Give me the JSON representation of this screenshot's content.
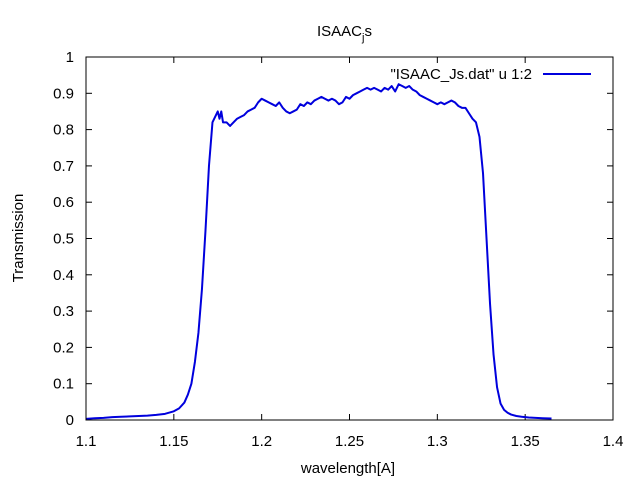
{
  "chart_data": {
    "type": "line",
    "title": "ISAAC",
    "title_subscript": "j",
    "title_suffix": "s",
    "xlabel": "wavelength[A]",
    "ylabel": "Transmission",
    "xlim": [
      1.1,
      1.4
    ],
    "ylim": [
      0,
      1
    ],
    "x_ticks": [
      "1.1",
      "1.15",
      "1.2",
      "1.25",
      "1.3",
      "1.35",
      "1.4"
    ],
    "y_ticks": [
      "0",
      "0.1",
      "0.2",
      "0.3",
      "0.4",
      "0.5",
      "0.6",
      "0.7",
      "0.8",
      "0.9",
      "1"
    ],
    "grid": false,
    "legend_position": "top-right",
    "series": [
      {
        "name": "\"ISAAC_Js.dat\" u 1:2",
        "color": "#0000dd",
        "x": [
          1.1,
          1.105,
          1.11,
          1.115,
          1.12,
          1.125,
          1.13,
          1.135,
          1.14,
          1.145,
          1.15,
          1.153,
          1.156,
          1.158,
          1.16,
          1.162,
          1.164,
          1.166,
          1.168,
          1.17,
          1.172,
          1.174,
          1.175,
          1.176,
          1.177,
          1.178,
          1.18,
          1.182,
          1.184,
          1.186,
          1.188,
          1.19,
          1.192,
          1.194,
          1.196,
          1.198,
          1.2,
          1.202,
          1.204,
          1.206,
          1.208,
          1.21,
          1.212,
          1.214,
          1.216,
          1.218,
          1.22,
          1.222,
          1.224,
          1.226,
          1.228,
          1.23,
          1.232,
          1.234,
          1.236,
          1.238,
          1.24,
          1.242,
          1.244,
          1.246,
          1.248,
          1.25,
          1.252,
          1.254,
          1.256,
          1.258,
          1.26,
          1.262,
          1.264,
          1.266,
          1.268,
          1.27,
          1.272,
          1.274,
          1.276,
          1.278,
          1.28,
          1.282,
          1.284,
          1.286,
          1.288,
          1.29,
          1.292,
          1.294,
          1.296,
          1.298,
          1.3,
          1.302,
          1.304,
          1.306,
          1.308,
          1.31,
          1.312,
          1.314,
          1.316,
          1.318,
          1.32,
          1.322,
          1.324,
          1.326,
          1.328,
          1.33,
          1.332,
          1.334,
          1.336,
          1.338,
          1.34,
          1.342,
          1.345,
          1.348,
          1.352,
          1.356,
          1.36,
          1.365
        ],
        "y": [
          0.003,
          0.005,
          0.006,
          0.008,
          0.009,
          0.01,
          0.011,
          0.012,
          0.014,
          0.017,
          0.024,
          0.032,
          0.048,
          0.07,
          0.1,
          0.16,
          0.24,
          0.36,
          0.52,
          0.7,
          0.82,
          0.84,
          0.85,
          0.83,
          0.85,
          0.82,
          0.82,
          0.81,
          0.82,
          0.83,
          0.835,
          0.84,
          0.85,
          0.855,
          0.86,
          0.875,
          0.885,
          0.88,
          0.875,
          0.87,
          0.865,
          0.875,
          0.86,
          0.85,
          0.845,
          0.85,
          0.855,
          0.87,
          0.865,
          0.875,
          0.87,
          0.88,
          0.885,
          0.89,
          0.885,
          0.88,
          0.885,
          0.88,
          0.87,
          0.875,
          0.89,
          0.885,
          0.895,
          0.9,
          0.905,
          0.91,
          0.915,
          0.91,
          0.915,
          0.91,
          0.905,
          0.915,
          0.91,
          0.92,
          0.905,
          0.925,
          0.92,
          0.915,
          0.92,
          0.91,
          0.905,
          0.895,
          0.89,
          0.885,
          0.88,
          0.875,
          0.87,
          0.875,
          0.87,
          0.875,
          0.88,
          0.875,
          0.865,
          0.86,
          0.86,
          0.845,
          0.83,
          0.82,
          0.78,
          0.68,
          0.5,
          0.32,
          0.18,
          0.09,
          0.045,
          0.028,
          0.02,
          0.015,
          0.011,
          0.009,
          0.007,
          0.006,
          0.005,
          0.004
        ]
      }
    ]
  }
}
